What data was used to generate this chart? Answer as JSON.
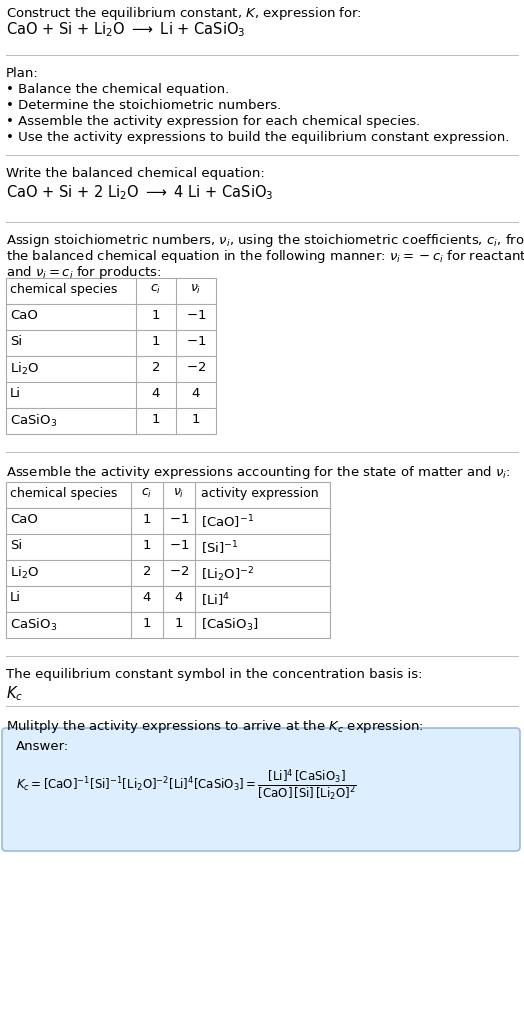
{
  "bg_color": "#ffffff",
  "text_color": "#000000",
  "line_color": "#bbbbbb",
  "table_line_color": "#aaaaaa",
  "plan_bullets": [
    "• Balance the chemical equation.",
    "• Determine the stoichiometric numbers.",
    "• Assemble the activity expression for each chemical species.",
    "• Use the activity expressions to build the equilibrium constant expression."
  ],
  "answer_box_color": "#ddeeff",
  "answer_border_color": "#99bbdd"
}
